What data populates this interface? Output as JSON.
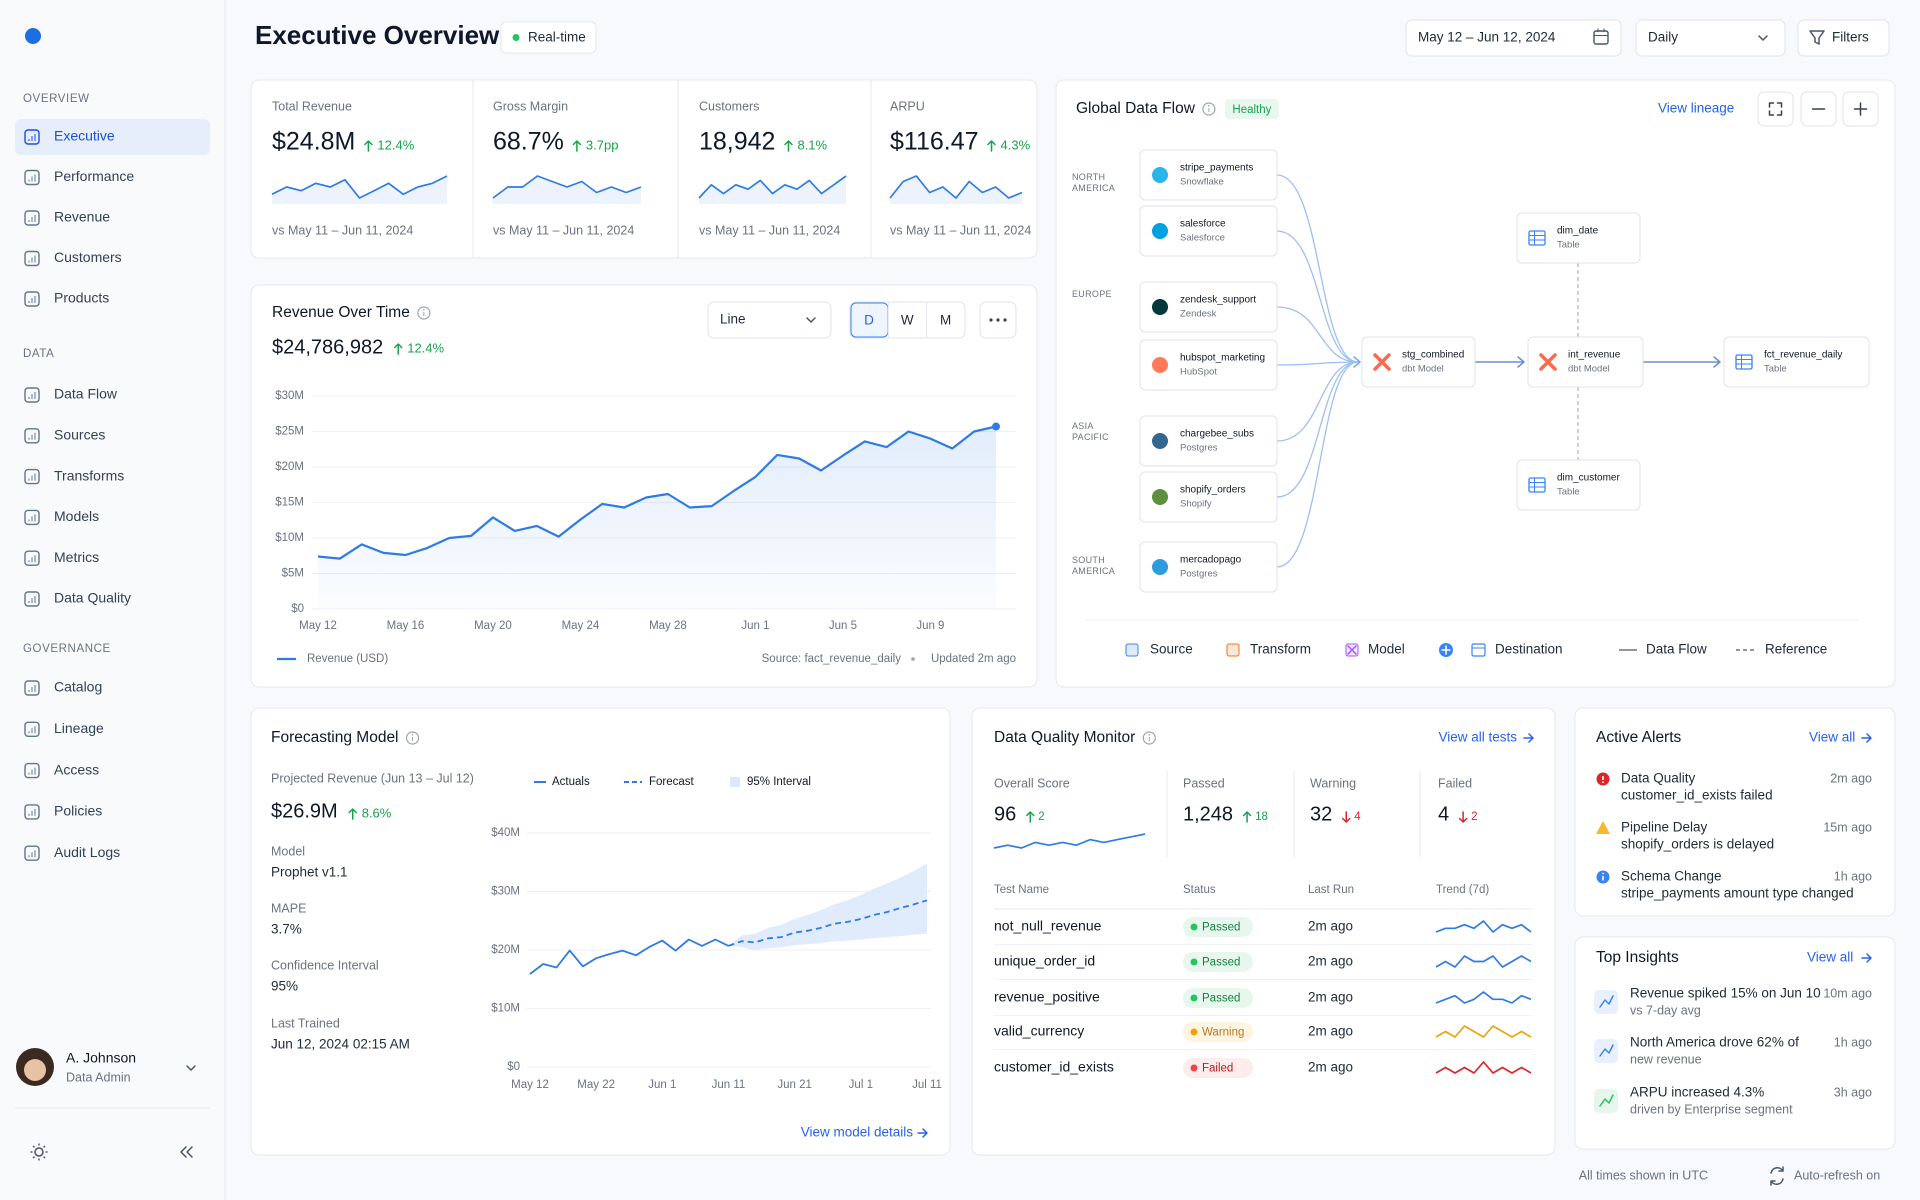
{
  "header": {
    "title": "Executive Overview",
    "badge": "Real-time",
    "date_range": "May 12 – Jun 12, 2024",
    "granularity": "Daily",
    "filters": "Filters"
  },
  "sidebar": {
    "sections": [
      {
        "title": "OVERVIEW",
        "items": [
          "Executive",
          "Performance",
          "Revenue",
          "Customers",
          "Products"
        ],
        "active": 0
      },
      {
        "title": "DATA",
        "items": [
          "Data Flow",
          "Sources",
          "Transforms",
          "Models",
          "Metrics",
          "Data Quality"
        ]
      },
      {
        "title": "GOVERNANCE",
        "items": [
          "Catalog",
          "Lineage",
          "Access",
          "Policies",
          "Audit Logs"
        ]
      }
    ],
    "user": {
      "name": "A. Johnson",
      "role": "Data Admin"
    }
  },
  "kpis": [
    {
      "label": "Total Revenue",
      "value": "$24.8M",
      "change": "12.4%",
      "direction": "up",
      "comparison": "vs May 11 – Jun 11, 2024",
      "sparkline": [
        3,
        5,
        4,
        6,
        5,
        7,
        2,
        4,
        6,
        3,
        5,
        6,
        8
      ]
    },
    {
      "label": "Gross Margin",
      "value": "68.7%",
      "change": "3.7pp",
      "direction": "up",
      "comparison": "vs May 11 – Jun 11, 2024",
      "sparkline": [
        3,
        5,
        5,
        7,
        6,
        5,
        6,
        4,
        5,
        4,
        5
      ]
    },
    {
      "label": "Customers",
      "value": "18,942",
      "change": "8.1%",
      "direction": "up",
      "comparison": "vs May 11 – Jun 11, 2024",
      "sparkline": [
        3,
        6,
        4,
        6,
        5,
        7,
        4,
        6,
        5,
        7,
        4,
        6,
        8
      ]
    },
    {
      "label": "ARPU",
      "value": "$116.47",
      "change": "4.3%",
      "direction": "up",
      "comparison": "vs May 11 – Jun 11, 2024",
      "sparkline": [
        3,
        6,
        7,
        4,
        5,
        3,
        6,
        4,
        5,
        3,
        4
      ]
    }
  ],
  "revenue_chart": {
    "type": "line",
    "title": "Revenue Over Time",
    "total": "$24,786,982",
    "change": "12.4%",
    "direction": "up",
    "chart_type": "Line",
    "periods": [
      "D",
      "W",
      "M"
    ],
    "active_period": 0,
    "categories": [
      "May 12",
      null,
      null,
      null,
      "May 16",
      null,
      null,
      null,
      "May 20",
      null,
      null,
      null,
      "May 24",
      null,
      null,
      null,
      "May 28",
      null,
      null,
      null,
      "Jun 1",
      null,
      null,
      null,
      "Jun 5",
      null,
      null,
      null,
      "Jun 9",
      null,
      null,
      null
    ],
    "series": [
      {
        "name": "Revenue (USD)",
        "color": "#2f7be5",
        "values": [
          7.4,
          7.1,
          9.1,
          7.9,
          7.6,
          8.6,
          10,
          10.3,
          12.9,
          11,
          11.7,
          10.2,
          12.6,
          14.8,
          14.3,
          15.7,
          16.2,
          14.3,
          14.5,
          16.6,
          18.6,
          21.7,
          21.2,
          19.5,
          21.6,
          23.6,
          22.8,
          25,
          24,
          22.6,
          25,
          25.7
        ]
      }
    ],
    "ylim": [
      0,
      30
    ],
    "yticks": [
      {
        "value": 0,
        "label": "$0"
      },
      {
        "value": 5,
        "label": "$5M"
      },
      {
        "value": 10,
        "label": "$10M"
      },
      {
        "value": 15,
        "label": "$15M"
      },
      {
        "value": 20,
        "label": "$20M"
      },
      {
        "value": 25,
        "label": "$25M"
      },
      {
        "value": 30,
        "label": "$30M"
      }
    ],
    "grid": true,
    "source": "Source: fact_revenue_daily",
    "updated": "Updated 2m ago"
  },
  "data_flow": {
    "title": "Global Data Flow",
    "status": "Healthy",
    "link": "View lineage",
    "regions": [
      "NORTH AMERICA",
      "EUROPE",
      "ASIA PACIFIC",
      "SOUTH AMERICA"
    ],
    "nodes": [
      {
        "name": "stripe_payments",
        "kind": "Snowflake"
      },
      {
        "name": "salesforce",
        "kind": "Salesforce"
      },
      {
        "name": "zendesk_support",
        "kind": "Zendesk"
      },
      {
        "name": "hubspot_marketing",
        "kind": "HubSpot"
      },
      {
        "name": "chargebee_subs",
        "kind": "Postgres"
      },
      {
        "name": "shopify_orders",
        "kind": "Shopify"
      },
      {
        "name": "mercadopago",
        "kind": "Postgres"
      },
      {
        "name": "stg_combined",
        "kind": "dbt Model"
      },
      {
        "name": "int_revenue",
        "kind": "dbt Model"
      },
      {
        "name": "fct_revenue_daily",
        "kind": "Table"
      },
      {
        "name": "dim_date",
        "kind": "Table"
      },
      {
        "name": "dim_customer",
        "kind": "Table"
      }
    ],
    "legend": [
      "Source",
      "Transform",
      "Model",
      "Destination",
      "Data Flow",
      "Reference"
    ]
  },
  "forecast": {
    "title": "Forecasting Model",
    "projected_label": "Projected Revenue (Jun 13 – Jul 12)",
    "projected_value": "$26.9M",
    "change": "8.6%",
    "direction": "up",
    "details": [
      {
        "label": "Model",
        "value": "Prophet v1.1"
      },
      {
        "label": "MAPE",
        "value": "3.7%"
      },
      {
        "label": "Confidence Interval",
        "value": "95%"
      },
      {
        "label": "Last Trained",
        "value": "Jun 12, 2024 02:15 AM"
      }
    ],
    "chart": {
      "type": "line",
      "categories": [
        "May 12",
        null,
        null,
        null,
        null,
        "May 22",
        null,
        null,
        null,
        null,
        "Jun 1",
        null,
        null,
        null,
        null,
        "Jun 11",
        null,
        null,
        null,
        null,
        "Jun 21",
        null,
        null,
        null,
        null,
        "Jul 1",
        null,
        null,
        null,
        null,
        "Jul 11"
      ],
      "series": [
        {
          "name": "Actuals",
          "color": "#2f7be5",
          "values": [
            15.9,
            17.6,
            17,
            19.9,
            17.2,
            18.6,
            19.3,
            19.9,
            19.1,
            20.5,
            21.6,
            19.9,
            21.8,
            20.7,
            21.8,
            20.7,
            null,
            null,
            null,
            null,
            null,
            null,
            null,
            null,
            null,
            null,
            null,
            null,
            null,
            null,
            null
          ]
        },
        {
          "name": "Forecast",
          "color": "#2f7be5",
          "dashed": true,
          "values": [
            null,
            null,
            null,
            null,
            null,
            null,
            null,
            null,
            null,
            null,
            null,
            null,
            null,
            null,
            null,
            20.7,
            21.5,
            21.3,
            22,
            22.2,
            23,
            23.3,
            23.8,
            24.5,
            24.8,
            25.3,
            26,
            26.5,
            27.2,
            27.8,
            28.5
          ]
        }
      ],
      "interval": {
        "name": "95% Interval",
        "color": "#dbe7fb",
        "lower": [
          null,
          null,
          null,
          null,
          null,
          null,
          null,
          null,
          null,
          null,
          null,
          null,
          null,
          null,
          null,
          20.7,
          20.5,
          20,
          20.3,
          20.5,
          20.8,
          21,
          21.2,
          21.5,
          21.6,
          21.8,
          22,
          22.2,
          22.4,
          22.6,
          22.8
        ],
        "upper": [
          null,
          null,
          null,
          null,
          null,
          null,
          null,
          null,
          null,
          null,
          null,
          null,
          null,
          null,
          null,
          20.7,
          22.5,
          22.8,
          23.8,
          24.3,
          25.3,
          26,
          26.8,
          27.8,
          28.5,
          29.4,
          30.5,
          31.4,
          32.4,
          33.5,
          34.8
        ]
      },
      "ylim": [
        0,
        40
      ],
      "yticks": [
        {
          "value": 0,
          "label": "$0"
        },
        {
          "value": 10,
          "label": "$10M"
        },
        {
          "value": 20,
          "label": "$20M"
        },
        {
          "value": 30,
          "label": "$30M"
        },
        {
          "value": 40,
          "label": "$40M"
        }
      ],
      "grid": true
    },
    "link": "View model details"
  },
  "data_quality": {
    "title": "Data Quality Monitor",
    "link": "View all tests",
    "metrics": [
      {
        "label": "Overall Score",
        "value": "96",
        "change": "2",
        "direction": "up"
      },
      {
        "label": "Passed",
        "value": "1,248",
        "change": "18",
        "direction": "up"
      },
      {
        "label": "Warning",
        "value": "32",
        "change": "4",
        "direction": "down"
      },
      {
        "label": "Failed",
        "value": "4",
        "change": "2",
        "direction": "down"
      }
    ],
    "overall_trend": [
      2,
      3,
      2,
      4,
      3,
      4,
      3,
      5,
      4,
      5,
      6,
      7
    ],
    "columns": [
      "Test Name",
      "Status",
      "Last Run",
      "Trend (7d)"
    ],
    "rows": [
      {
        "test": "not_null_revenue",
        "status": "Passed",
        "last_run": "2m ago",
        "color": "#2f7be5",
        "trend": [
          3,
          4,
          4,
          5,
          4,
          6,
          3,
          5,
          4,
          5,
          3
        ]
      },
      {
        "test": "unique_order_id",
        "status": "Passed",
        "last_run": "2m ago",
        "color": "#2f7be5",
        "trend": [
          3,
          4,
          3,
          5,
          4,
          4,
          5,
          3,
          4,
          5,
          4
        ]
      },
      {
        "test": "revenue_positive",
        "status": "Passed",
        "last_run": "2m ago",
        "color": "#2f7be5",
        "trend": [
          3,
          4,
          5,
          3,
          4,
          6,
          4,
          4,
          3,
          5,
          4
        ]
      },
      {
        "test": "valid_currency",
        "status": "Warning",
        "last_run": "2m ago",
        "color": "#e8a317",
        "trend": [
          3,
          4,
          3,
          5,
          4,
          3,
          5,
          4,
          3,
          4,
          3
        ]
      },
      {
        "test": "customer_id_exists",
        "status": "Failed",
        "last_run": "2m ago",
        "color": "#dc2626",
        "trend": [
          3,
          4,
          3,
          4,
          3,
          5,
          3,
          4,
          3,
          4,
          3
        ]
      }
    ]
  },
  "alerts": {
    "title": "Active Alerts",
    "link": "View all",
    "items": [
      {
        "level": "error",
        "title": "Data Quality",
        "detail": "customer_id_exists failed",
        "time": "2m ago"
      },
      {
        "level": "warning",
        "title": "Pipeline Delay",
        "detail": "shopify_orders is delayed",
        "time": "15m ago"
      },
      {
        "level": "info",
        "title": "Schema Change",
        "detail": "stripe_payments amount type changed",
        "time": "1h ago"
      }
    ]
  },
  "insights": {
    "title": "Top Insights",
    "link": "View all",
    "items": [
      {
        "title": "Revenue spiked 15% on Jun 10",
        "detail": "vs 7-day avg",
        "time": "10m ago"
      },
      {
        "title": "North America drove 62% of",
        "detail": "new revenue",
        "time": "1h ago"
      },
      {
        "title": "ARPU increased 4.3%",
        "detail": "driven by Enterprise segment",
        "time": "3h ago"
      }
    ]
  },
  "footer": {
    "timezone": "All times shown in UTC",
    "refresh": "Auto-refresh on"
  }
}
